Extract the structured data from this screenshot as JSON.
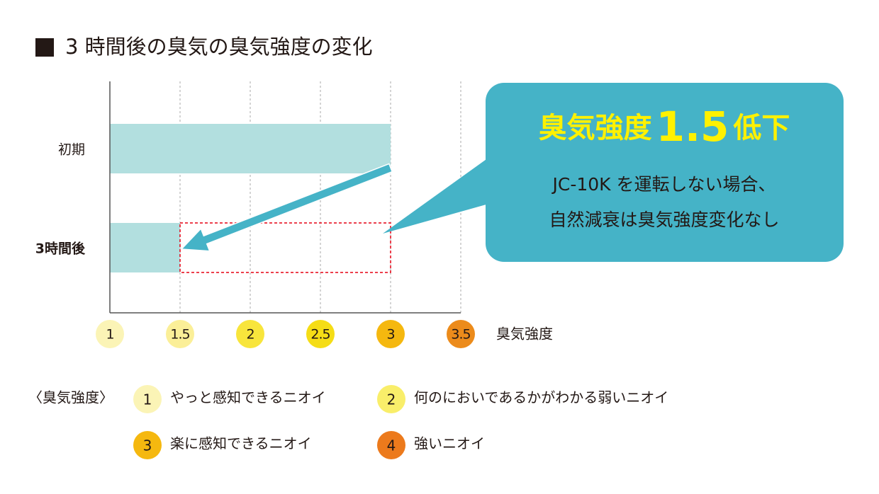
{
  "chart_data": {
    "type": "hbar",
    "title": "3 時間後の臭気の臭気強度の変化",
    "categories": [
      "初期",
      "3時間後"
    ],
    "values": [
      3,
      1.5
    ],
    "color": "#b2dfdf",
    "xlim": [
      1,
      3.5
    ],
    "xticks": [
      1,
      1.5,
      2,
      2.5,
      3,
      3.5
    ],
    "tick_colors": [
      "#fbf4b6",
      "#fbef98",
      "#f8e53c",
      "#f5dd16",
      "#f5b80f",
      "#ec8b1b"
    ],
    "xlabel": "臭気強度",
    "grid": true,
    "callout": {
      "headline": [
        "臭気強度",
        "1.5",
        "低下"
      ],
      "lines": [
        "JC-10K を運転しない場合、",
        "自然減衰は臭気強度変化なし"
      ],
      "color": "#45b3c7"
    },
    "scale_legend": {
      "title": "〈臭気強度〉",
      "items": [
        {
          "level": "1",
          "label": "やっと感知できるニオイ",
          "color": "#fbf4b6"
        },
        {
          "level": "2",
          "label": "何のにおいであるかがわかる弱いニオイ",
          "color": "#f9ee6a"
        },
        {
          "level": "3",
          "label": "楽に感知できるニオイ",
          "color": "#f5b80f"
        },
        {
          "level": "4",
          "label": "強いニオイ",
          "color": "#ec7a1c"
        }
      ]
    }
  }
}
